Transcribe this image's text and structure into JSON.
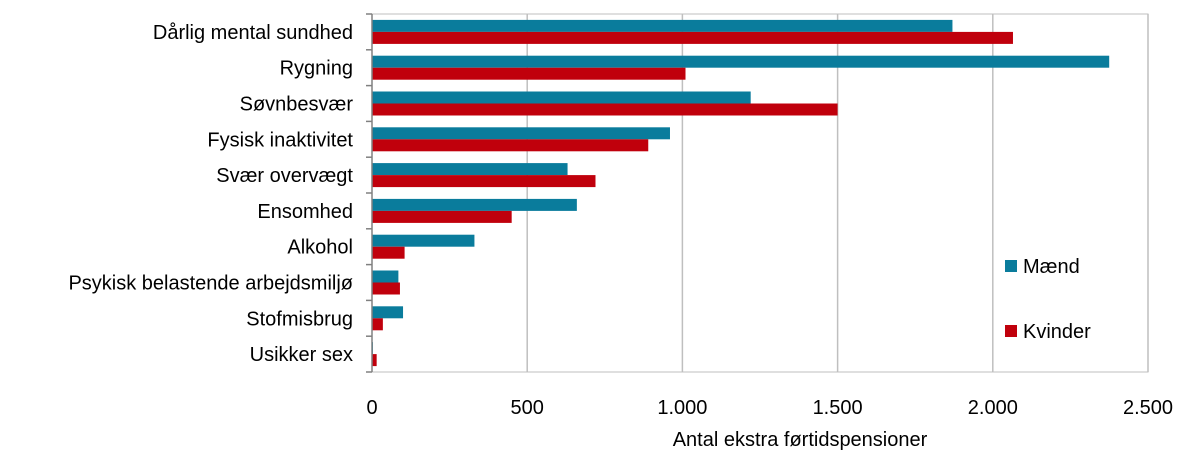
{
  "chart_data": {
    "type": "bar",
    "orientation": "horizontal",
    "categories": [
      "Dårlig mental sundhed",
      "Rygning",
      "Søvnbesvær",
      "Fysisk inaktivitet",
      "Svær overvægt",
      "Ensomhed",
      "Alkohol",
      "Psykisk belastende arbejdsmiljø",
      "Stofmisbrug",
      "Usikker sex"
    ],
    "series": [
      {
        "name": "Mænd",
        "color": "#0a7c9c",
        "values": [
          1870,
          2375,
          1220,
          960,
          630,
          660,
          330,
          85,
          100,
          3
        ]
      },
      {
        "name": "Kvinder",
        "color": "#c0000c",
        "values": [
          2065,
          1010,
          1500,
          890,
          720,
          450,
          105,
          90,
          35,
          15
        ]
      }
    ],
    "xlabel": "Antal ekstra førtidspensioner",
    "ylabel": "",
    "title": "",
    "xlim": [
      0,
      2500
    ],
    "xticks": [
      {
        "value": 0,
        "label": "0"
      },
      {
        "value": 500,
        "label": "500"
      },
      {
        "value": 1000,
        "label": "1.000"
      },
      {
        "value": 1500,
        "label": "1.500"
      },
      {
        "value": 2000,
        "label": "2.000"
      },
      {
        "value": 2500,
        "label": "2.500"
      }
    ],
    "grid": "vertical",
    "legend_position": "right"
  }
}
